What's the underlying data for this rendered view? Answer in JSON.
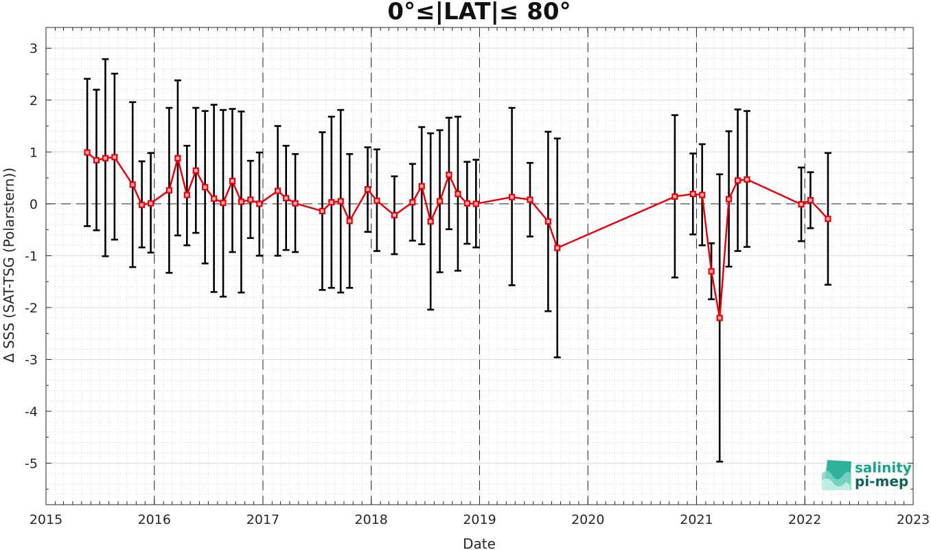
{
  "chart_data": {
    "type": "line",
    "title": "0°≤|LAT|≤ 80°",
    "xlabel": "Date",
    "ylabel": "Δ SSS (SAT-TSG (Polarstern))",
    "xlim": [
      "2015-01-01",
      "2023-01-01"
    ],
    "ylim": [
      -5.8,
      3.4
    ],
    "x_ticks": [
      "2015",
      "2016",
      "2017",
      "2018",
      "2019",
      "2020",
      "2021",
      "2022",
      "2023"
    ],
    "y_ticks": [
      "-5",
      "-4",
      "-3",
      "-2",
      "-1",
      "0",
      "1",
      "2",
      "3"
    ],
    "grid": true,
    "minor_grid": true,
    "reference_line_y": 0,
    "year_boundary_lines": true,
    "series": [
      {
        "color": "#e8000b",
        "marker": "square",
        "errorbar_color": "#000000",
        "points": [
          {
            "x": "2015-05-20",
            "y": 0.99,
            "low": -0.43,
            "high": 2.41
          },
          {
            "x": "2015-06-20",
            "y": 0.84,
            "low": -0.51,
            "high": 2.2
          },
          {
            "x": "2015-07-20",
            "y": 0.88,
            "low": -1.01,
            "high": 2.79
          },
          {
            "x": "2015-08-20",
            "y": 0.9,
            "low": -0.69,
            "high": 2.51
          },
          {
            "x": "2015-10-20",
            "y": 0.37,
            "low": -1.22,
            "high": 1.96
          },
          {
            "x": "2015-11-20",
            "y": -0.02,
            "low": -0.84,
            "high": 0.82
          },
          {
            "x": "2015-12-20",
            "y": 0.01,
            "low": -0.94,
            "high": 0.98
          },
          {
            "x": "2016-02-20",
            "y": 0.26,
            "low": -1.33,
            "high": 1.85
          },
          {
            "x": "2016-03-20",
            "y": 0.88,
            "low": -0.61,
            "high": 2.38
          },
          {
            "x": "2016-04-20",
            "y": 0.17,
            "low": -0.8,
            "high": 1.12
          },
          {
            "x": "2016-05-20",
            "y": 0.64,
            "low": -0.56,
            "high": 1.85
          },
          {
            "x": "2016-06-20",
            "y": 0.32,
            "low": -1.15,
            "high": 1.79
          },
          {
            "x": "2016-07-20",
            "y": 0.1,
            "low": -1.7,
            "high": 1.91
          },
          {
            "x": "2016-08-20",
            "y": 0.02,
            "low": -1.79,
            "high": 1.81
          },
          {
            "x": "2016-09-20",
            "y": 0.44,
            "low": -0.93,
            "high": 1.83
          },
          {
            "x": "2016-10-20",
            "y": 0.04,
            "low": -1.71,
            "high": 1.78
          },
          {
            "x": "2016-11-20",
            "y": 0.08,
            "low": -0.66,
            "high": 0.83
          },
          {
            "x": "2016-12-20",
            "y": 0.0,
            "low": -1.0,
            "high": 0.99
          },
          {
            "x": "2017-02-20",
            "y": 0.25,
            "low": -1.0,
            "high": 1.5
          },
          {
            "x": "2017-03-20",
            "y": 0.11,
            "low": -0.89,
            "high": 1.12
          },
          {
            "x": "2017-04-20",
            "y": 0.01,
            "low": -0.93,
            "high": 0.96
          },
          {
            "x": "2017-07-20",
            "y": -0.14,
            "low": -1.66,
            "high": 1.38
          },
          {
            "x": "2017-08-20",
            "y": 0.03,
            "low": -1.62,
            "high": 1.68
          },
          {
            "x": "2017-09-20",
            "y": 0.05,
            "low": -1.71,
            "high": 1.81
          },
          {
            "x": "2017-10-20",
            "y": -0.33,
            "low": -1.62,
            "high": 0.96
          },
          {
            "x": "2017-12-20",
            "y": 0.28,
            "low": -0.54,
            "high": 1.09
          },
          {
            "x": "2018-01-20",
            "y": 0.06,
            "low": -0.91,
            "high": 1.05
          },
          {
            "x": "2018-03-20",
            "y": -0.22,
            "low": -0.97,
            "high": 0.53
          },
          {
            "x": "2018-05-20",
            "y": 0.03,
            "low": -0.71,
            "high": 0.77
          },
          {
            "x": "2018-06-20",
            "y": 0.34,
            "low": -0.78,
            "high": 1.48
          },
          {
            "x": "2018-07-20",
            "y": -0.34,
            "low": -2.04,
            "high": 1.36
          },
          {
            "x": "2018-08-20",
            "y": 0.05,
            "low": -1.32,
            "high": 1.42
          },
          {
            "x": "2018-09-20",
            "y": 0.56,
            "low": -0.49,
            "high": 1.66
          },
          {
            "x": "2018-10-20",
            "y": 0.19,
            "low": -1.29,
            "high": 1.68
          },
          {
            "x": "2018-11-20",
            "y": 0.01,
            "low": -0.77,
            "high": 0.81
          },
          {
            "x": "2018-12-20",
            "y": 0.0,
            "low": -0.84,
            "high": 0.85
          },
          {
            "x": "2019-04-20",
            "y": 0.13,
            "low": -1.57,
            "high": 1.85
          },
          {
            "x": "2019-06-20",
            "y": 0.08,
            "low": -0.63,
            "high": 0.79
          },
          {
            "x": "2019-08-20",
            "y": -0.34,
            "low": -2.07,
            "high": 1.39
          },
          {
            "x": "2019-09-20",
            "y": -0.85,
            "low": -2.96,
            "high": 1.26
          },
          {
            "x": "2020-10-20",
            "y": 0.14,
            "low": -1.42,
            "high": 1.71
          },
          {
            "x": "2020-12-20",
            "y": 0.19,
            "low": -0.59,
            "high": 0.97
          },
          {
            "x": "2021-01-20",
            "y": 0.17,
            "low": -0.8,
            "high": 1.15
          },
          {
            "x": "2021-02-20",
            "y": -1.3,
            "low": -1.84,
            "high": -0.76
          },
          {
            "x": "2021-03-20",
            "y": -2.2,
            "low": -4.97,
            "high": 0.57
          },
          {
            "x": "2021-04-20",
            "y": 0.09,
            "low": -1.21,
            "high": 1.4
          },
          {
            "x": "2021-05-20",
            "y": 0.45,
            "low": -0.91,
            "high": 1.82
          },
          {
            "x": "2021-06-20",
            "y": 0.47,
            "low": -0.83,
            "high": 1.79
          },
          {
            "x": "2021-12-20",
            "y": -0.01,
            "low": -0.72,
            "high": 0.7
          },
          {
            "x": "2022-01-20",
            "y": 0.07,
            "low": -0.47,
            "high": 0.61
          },
          {
            "x": "2022-03-20",
            "y": -0.29,
            "low": -1.56,
            "high": 0.98
          }
        ]
      }
    ]
  },
  "logo": {
    "line1": "salinity",
    "line2": "pi-mep",
    "color1": "#17a589",
    "color2": "#0e6655"
  }
}
